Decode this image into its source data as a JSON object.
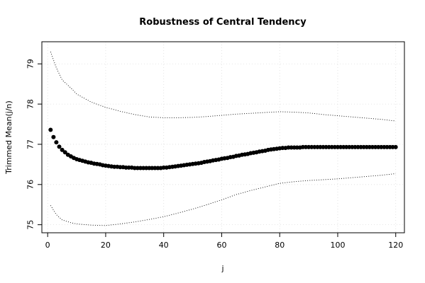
{
  "chart_data": {
    "type": "scatter",
    "title": "Robustness of Central Tendency",
    "xlabel": "j",
    "ylabel": "Trimmed Mean(j/n)",
    "xlim": [
      -2,
      123
    ],
    "ylim": [
      74.8,
      79.55
    ],
    "x_ticks": [
      0,
      20,
      40,
      60,
      80,
      100,
      120
    ],
    "y_ticks": [
      75,
      76,
      77,
      78,
      79
    ],
    "grid": true,
    "points": {
      "x": [
        1,
        2,
        3,
        4,
        5,
        6,
        7,
        8,
        9,
        10,
        11,
        12,
        13,
        14,
        15,
        16,
        17,
        18,
        19,
        20,
        21,
        22,
        23,
        24,
        25,
        26,
        27,
        28,
        29,
        30,
        31,
        32,
        33,
        34,
        35,
        36,
        37,
        38,
        39,
        40,
        41,
        42,
        43,
        44,
        45,
        46,
        47,
        48,
        49,
        50,
        51,
        52,
        53,
        54,
        55,
        56,
        57,
        58,
        59,
        60,
        61,
        62,
        63,
        64,
        65,
        66,
        67,
        68,
        69,
        70,
        71,
        72,
        73,
        74,
        75,
        76,
        77,
        78,
        79,
        80,
        81,
        82,
        83,
        84,
        85,
        86,
        87,
        88,
        89,
        90,
        91,
        92,
        93,
        94,
        95,
        96,
        97,
        98,
        99,
        100,
        101,
        102,
        103,
        104,
        105,
        106,
        107,
        108,
        109,
        110,
        111,
        112,
        113,
        114,
        115,
        116,
        117,
        118,
        119,
        120
      ],
      "y": [
        77.36,
        77.18,
        77.05,
        76.94,
        76.86,
        76.8,
        76.74,
        76.7,
        76.66,
        76.63,
        76.61,
        76.59,
        76.57,
        76.55,
        76.54,
        76.52,
        76.51,
        76.5,
        76.48,
        76.47,
        76.46,
        76.45,
        76.44,
        76.44,
        76.43,
        76.43,
        76.42,
        76.42,
        76.42,
        76.41,
        76.41,
        76.41,
        76.41,
        76.41,
        76.41,
        76.41,
        76.41,
        76.41,
        76.41,
        76.42,
        76.42,
        76.43,
        76.44,
        76.45,
        76.46,
        76.47,
        76.48,
        76.49,
        76.5,
        76.51,
        76.52,
        76.53,
        76.54,
        76.56,
        76.57,
        76.58,
        76.6,
        76.61,
        76.62,
        76.64,
        76.65,
        76.66,
        76.68,
        76.69,
        76.71,
        76.72,
        76.74,
        76.75,
        76.76,
        76.78,
        76.79,
        76.8,
        76.82,
        76.83,
        76.84,
        76.86,
        76.87,
        76.88,
        76.89,
        76.9,
        76.91,
        76.91,
        76.92,
        76.92,
        76.92,
        76.92,
        76.92,
        76.93,
        76.93,
        76.93,
        76.93,
        76.93,
        76.93,
        76.93,
        76.93,
        76.93,
        76.93,
        76.93,
        76.93,
        76.93,
        76.93,
        76.93,
        76.93,
        76.93,
        76.93,
        76.93,
        76.93,
        76.93,
        76.93,
        76.93,
        76.93,
        76.93,
        76.93,
        76.93,
        76.93,
        76.93,
        76.93,
        76.93,
        76.93,
        76.93
      ]
    },
    "upper_band": {
      "x": [
        1,
        3,
        5,
        8,
        10,
        15,
        20,
        25,
        30,
        35,
        40,
        45,
        50,
        55,
        60,
        65,
        70,
        75,
        80,
        85,
        90,
        95,
        100,
        105,
        110,
        115,
        120
      ],
      "y": [
        79.3,
        78.9,
        78.6,
        78.4,
        78.25,
        78.05,
        77.92,
        77.82,
        77.74,
        77.68,
        77.66,
        77.66,
        77.67,
        77.69,
        77.72,
        77.75,
        77.77,
        77.79,
        77.81,
        77.8,
        77.78,
        77.74,
        77.71,
        77.68,
        77.65,
        77.62,
        77.58
      ]
    },
    "lower_band": {
      "x": [
        1,
        3,
        5,
        8,
        10,
        15,
        20,
        25,
        30,
        35,
        40,
        45,
        50,
        55,
        60,
        65,
        70,
        75,
        80,
        85,
        90,
        95,
        100,
        105,
        110,
        115,
        120
      ],
      "y": [
        75.48,
        75.25,
        75.12,
        75.05,
        75.02,
        74.99,
        74.98,
        75.02,
        75.07,
        75.13,
        75.2,
        75.29,
        75.39,
        75.5,
        75.62,
        75.75,
        75.85,
        75.94,
        76.03,
        76.07,
        76.1,
        76.12,
        76.14,
        76.17,
        76.2,
        76.23,
        76.27
      ]
    }
  }
}
